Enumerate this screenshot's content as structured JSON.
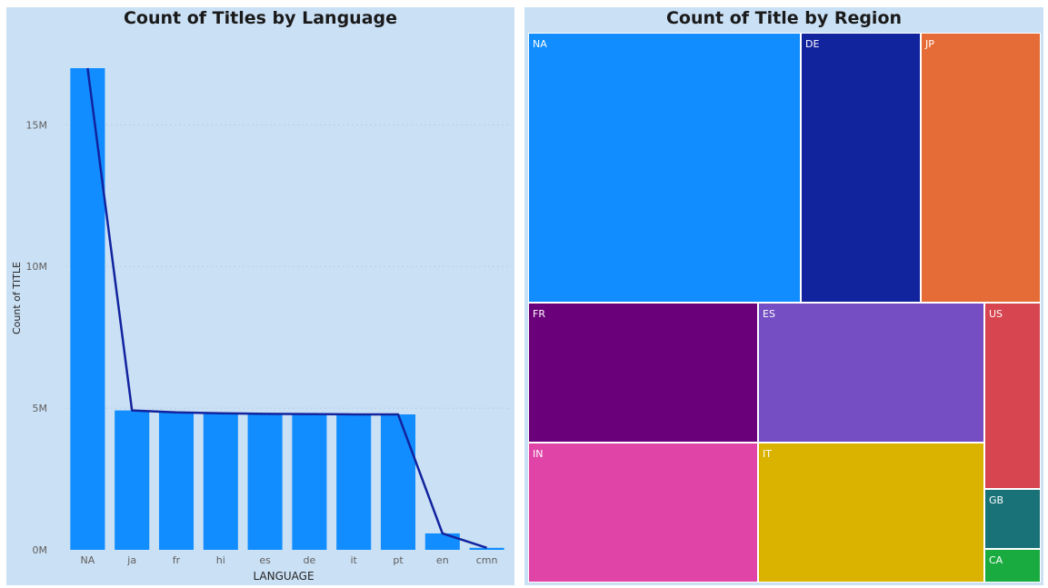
{
  "chart_data": [
    {
      "type": "bar",
      "title": "Count of Titles by Language",
      "xlabel": "LANGUAGE",
      "ylabel": "Count of TITLE",
      "categories": [
        "NA",
        "ja",
        "fr",
        "hi",
        "es",
        "de",
        "it",
        "pt",
        "en",
        "cmn"
      ],
      "values": [
        17.0,
        4.92,
        4.85,
        4.82,
        4.8,
        4.79,
        4.78,
        4.78,
        0.58,
        0.07
      ],
      "value_unit": "M",
      "line_values": [
        17.0,
        4.92,
        4.85,
        4.82,
        4.8,
        4.79,
        4.78,
        4.78,
        0.58,
        0.07
      ],
      "ylim": [
        0,
        17
      ],
      "yticks": [
        0,
        5,
        10,
        15
      ],
      "ytick_labels": [
        "0M",
        "5M",
        "10M",
        "15M"
      ],
      "grid": true,
      "colors": {
        "bar": "#118dff",
        "line": "#12239e",
        "panel": "#cae0f5"
      }
    },
    {
      "type": "treemap",
      "title": "Count of Title by Region",
      "items": [
        {
          "label": "NA",
          "color": "#118dff"
        },
        {
          "label": "DE",
          "color": "#12239e"
        },
        {
          "label": "JP",
          "color": "#e66c37"
        },
        {
          "label": "FR",
          "color": "#6b007b"
        },
        {
          "label": "ES",
          "color": "#744ec2"
        },
        {
          "label": "US",
          "color": "#d64550"
        },
        {
          "label": "IN",
          "color": "#e044a7"
        },
        {
          "label": "IT",
          "color": "#d9b300"
        },
        {
          "label": "GB",
          "color": "#197278"
        },
        {
          "label": "CA",
          "color": "#1aab40"
        }
      ]
    }
  ]
}
